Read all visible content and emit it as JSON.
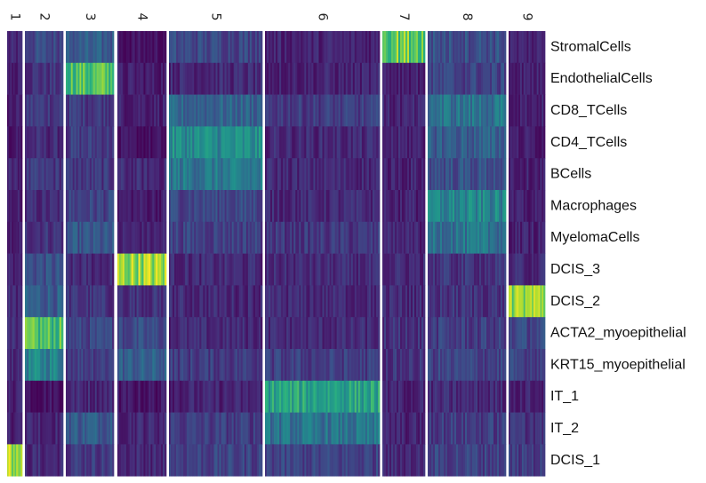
{
  "chart_data": {
    "type": "heatmap",
    "colormap": "viridis",
    "value_range": [
      0,
      1
    ],
    "clusters": [
      {
        "label": "1",
        "cells": 10
      },
      {
        "label": "2",
        "cells": 20
      },
      {
        "label": "3",
        "cells": 28
      },
      {
        "label": "4",
        "cells": 28
      },
      {
        "label": "5",
        "cells": 52
      },
      {
        "label": "6",
        "cells": 64
      },
      {
        "label": "7",
        "cells": 24
      },
      {
        "label": "8",
        "cells": 44
      },
      {
        "label": "9",
        "cells": 22
      }
    ],
    "rows": [
      "StromalCells",
      "EndothelialCells",
      "CD8_TCells",
      "CD4_TCells",
      "BCells",
      "Macrophages",
      "MyelomaCells",
      "DCIS_3",
      "DCIS_2",
      "ACTA2_myoepithelial",
      "KRT15_myoepithelial",
      "IT_1",
      "IT_2",
      "DCIS_1"
    ],
    "mean_scores": [
      [
        0.1,
        0.22,
        0.28,
        0.05,
        0.22,
        0.1,
        0.78,
        0.25,
        0.1
      ],
      [
        0.08,
        0.15,
        0.72,
        0.08,
        0.12,
        0.1,
        0.1,
        0.2,
        0.1
      ],
      [
        0.08,
        0.18,
        0.18,
        0.1,
        0.32,
        0.18,
        0.1,
        0.38,
        0.1
      ],
      [
        0.06,
        0.12,
        0.18,
        0.04,
        0.48,
        0.12,
        0.1,
        0.3,
        0.08
      ],
      [
        0.1,
        0.16,
        0.16,
        0.12,
        0.4,
        0.12,
        0.1,
        0.25,
        0.1
      ],
      [
        0.08,
        0.12,
        0.2,
        0.08,
        0.22,
        0.12,
        0.1,
        0.45,
        0.08
      ],
      [
        0.1,
        0.16,
        0.26,
        0.1,
        0.2,
        0.16,
        0.1,
        0.38,
        0.1
      ],
      [
        0.1,
        0.25,
        0.12,
        0.85,
        0.12,
        0.12,
        0.12,
        0.15,
        0.12
      ],
      [
        0.12,
        0.3,
        0.15,
        0.15,
        0.12,
        0.12,
        0.12,
        0.15,
        0.85
      ],
      [
        0.12,
        0.7,
        0.2,
        0.22,
        0.12,
        0.12,
        0.15,
        0.18,
        0.22
      ],
      [
        0.12,
        0.45,
        0.2,
        0.3,
        0.18,
        0.18,
        0.15,
        0.2,
        0.2
      ],
      [
        0.1,
        0.06,
        0.12,
        0.06,
        0.1,
        0.58,
        0.1,
        0.12,
        0.1
      ],
      [
        0.1,
        0.12,
        0.3,
        0.12,
        0.18,
        0.38,
        0.1,
        0.18,
        0.15
      ],
      [
        0.85,
        0.12,
        0.18,
        0.12,
        0.2,
        0.2,
        0.12,
        0.2,
        0.18
      ]
    ]
  }
}
